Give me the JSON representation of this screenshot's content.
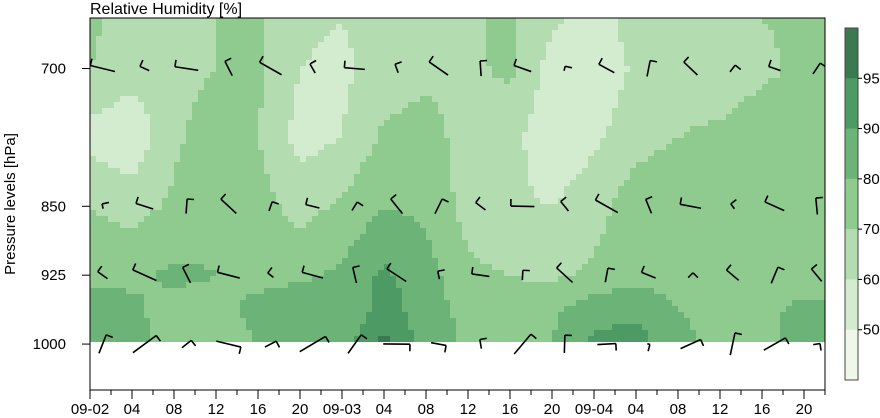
{
  "chart_data": {
    "type": "heatmap",
    "title": "Relative Humidity [%]",
    "xlabel": "",
    "ylabel": "Pressure levels [hPa]",
    "x_tick_labels": [
      "09-02",
      "04",
      "08",
      "12",
      "16",
      "20",
      "09-03",
      "04",
      "08",
      "12",
      "16",
      "20",
      "09-04",
      "04",
      "08",
      "12",
      "16",
      "20"
    ],
    "x_hours": [
      0,
      4,
      8,
      12,
      16,
      20,
      24,
      28,
      32,
      36,
      40,
      44,
      48,
      52,
      56,
      60,
      64,
      68
    ],
    "xlim": [
      0,
      70
    ],
    "y_tick_values": [
      700,
      850,
      925,
      1000
    ],
    "ylim": [
      1050,
      645
    ],
    "contour_levels": [
      50,
      60,
      70,
      80,
      90,
      95
    ],
    "colorbar": {
      "tick_labels": [
        "50",
        "60",
        "70",
        "80",
        "90",
        "95"
      ],
      "colors": [
        "#ffffff",
        "#eef7ea",
        "#d3ecd0",
        "#b3ddb0",
        "#8fcb8e",
        "#6bb377",
        "#4d9a64",
        "#3b7a51"
      ]
    },
    "rh_grid": {
      "x": [
        0,
        4,
        8,
        12,
        16,
        20,
        24,
        28,
        32,
        36,
        40,
        44,
        48,
        52,
        56,
        60,
        64,
        68,
        70
      ],
      "p": [
        645,
        700,
        775,
        850,
        925,
        962,
        1000
      ],
      "values": [
        [
          72,
          66,
          68,
          70,
          72,
          62,
          60,
          66,
          70,
          68,
          72,
          62,
          56,
          64,
          68,
          66,
          70,
          72,
          74
        ],
        [
          70,
          64,
          66,
          70,
          72,
          60,
          58,
          64,
          68,
          68,
          72,
          56,
          52,
          62,
          66,
          64,
          68,
          72,
          74
        ],
        [
          56,
          52,
          68,
          76,
          70,
          56,
          60,
          72,
          74,
          66,
          64,
          52,
          58,
          66,
          70,
          72,
          76,
          74,
          74
        ],
        [
          70,
          66,
          72,
          78,
          74,
          66,
          72,
          80,
          78,
          66,
          62,
          60,
          66,
          76,
          78,
          76,
          76,
          72,
          74
        ],
        [
          76,
          78,
          82,
          80,
          78,
          78,
          82,
          92,
          84,
          72,
          70,
          68,
          72,
          76,
          76,
          78,
          80,
          74,
          72
        ],
        [
          88,
          82,
          76,
          78,
          82,
          86,
          82,
          94,
          86,
          76,
          74,
          78,
          86,
          88,
          80,
          76,
          78,
          82,
          84
        ],
        [
          86,
          84,
          74,
          76,
          80,
          86,
          88,
          96,
          88,
          78,
          76,
          80,
          92,
          94,
          84,
          76,
          76,
          84,
          86
        ]
      ]
    },
    "wind_barbs": {
      "levels": [
        700,
        850,
        925,
        1000
      ],
      "barb_label": "wind"
    }
  }
}
